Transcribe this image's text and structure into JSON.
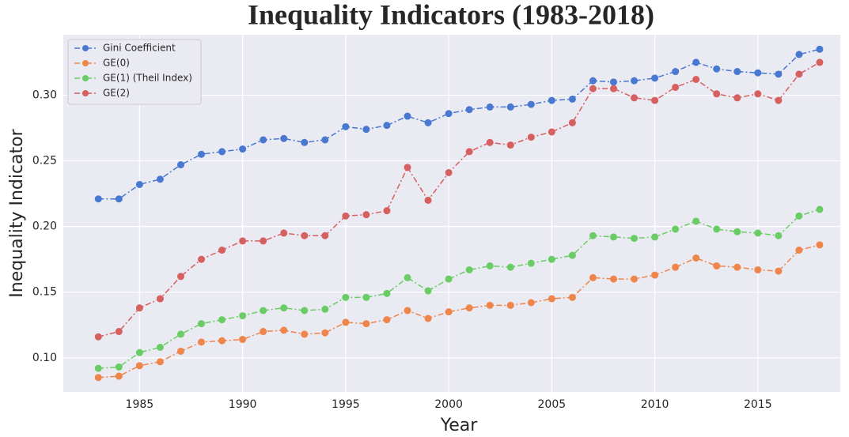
{
  "chart_data": {
    "type": "line",
    "title": "Inequality Indicators (1983-2018)",
    "xlabel": "Year",
    "ylabel": "Inequality Indicator",
    "x": [
      1983,
      1984,
      1985,
      1986,
      1987,
      1988,
      1989,
      1990,
      1991,
      1992,
      1993,
      1994,
      1995,
      1996,
      1997,
      1998,
      1999,
      2000,
      2001,
      2002,
      2003,
      2004,
      2005,
      2006,
      2007,
      2008,
      2009,
      2010,
      2011,
      2012,
      2013,
      2014,
      2015,
      2016,
      2017,
      2018
    ],
    "series": [
      {
        "name": "Gini Coefficient",
        "color": "#4878d0",
        "values": [
          0.221,
          0.221,
          0.232,
          0.236,
          0.247,
          0.255,
          0.257,
          0.259,
          0.266,
          0.267,
          0.264,
          0.266,
          0.276,
          0.274,
          0.277,
          0.284,
          0.279,
          0.286,
          0.289,
          0.291,
          0.291,
          0.293,
          0.296,
          0.297,
          0.311,
          0.31,
          0.311,
          0.313,
          0.318,
          0.325,
          0.32,
          0.318,
          0.317,
          0.316,
          0.331,
          0.335
        ]
      },
      {
        "name": "GE(0)",
        "color": "#ee854a",
        "values": [
          0.085,
          0.086,
          0.094,
          0.097,
          0.105,
          0.112,
          0.113,
          0.114,
          0.12,
          0.121,
          0.118,
          0.119,
          0.127,
          0.126,
          0.129,
          0.136,
          0.13,
          0.135,
          0.138,
          0.14,
          0.14,
          0.142,
          0.145,
          0.146,
          0.161,
          0.16,
          0.16,
          0.163,
          0.169,
          0.176,
          0.17,
          0.169,
          0.167,
          0.166,
          0.182,
          0.186
        ]
      },
      {
        "name": "GE(1) (Theil Index)",
        "color": "#6acc64",
        "values": [
          0.092,
          0.093,
          0.104,
          0.108,
          0.118,
          0.126,
          0.129,
          0.132,
          0.136,
          0.138,
          0.136,
          0.137,
          0.146,
          0.146,
          0.149,
          0.161,
          0.151,
          0.16,
          0.167,
          0.17,
          0.169,
          0.172,
          0.175,
          0.178,
          0.193,
          0.192,
          0.191,
          0.192,
          0.198,
          0.204,
          0.198,
          0.196,
          0.195,
          0.193,
          0.208,
          0.213
        ]
      },
      {
        "name": "GE(2)",
        "color": "#d65f5f",
        "values": [
          0.116,
          0.12,
          0.138,
          0.145,
          0.162,
          0.175,
          0.182,
          0.189,
          0.189,
          0.195,
          0.193,
          0.193,
          0.208,
          0.209,
          0.212,
          0.245,
          0.22,
          0.241,
          0.257,
          0.264,
          0.262,
          0.268,
          0.272,
          0.279,
          0.305,
          0.305,
          0.298,
          0.296,
          0.306,
          0.312,
          0.301,
          0.298,
          0.301,
          0.296,
          0.316,
          0.325
        ]
      }
    ],
    "xlim": [
      1981.3,
      2019
    ],
    "xticks": [
      1985,
      1990,
      1995,
      2000,
      2005,
      2010,
      2015
    ],
    "ylim": [
      0.074,
      0.346
    ],
    "yticks": [
      {
        "value": 0.1,
        "label": "0.10"
      },
      {
        "value": 0.15,
        "label": "0.15"
      },
      {
        "value": 0.2,
        "label": "0.20"
      },
      {
        "value": 0.25,
        "label": "0.25"
      },
      {
        "value": 0.3,
        "label": "0.30"
      }
    ],
    "grid": true,
    "legend": "upper left"
  }
}
